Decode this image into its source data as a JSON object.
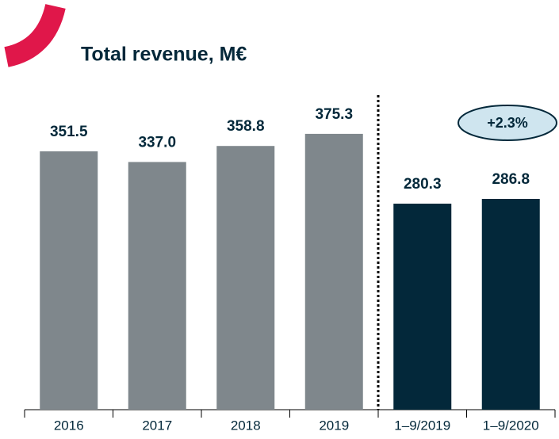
{
  "chart_data": {
    "type": "bar",
    "title": "Total revenue, M€",
    "categories": [
      "2016",
      "2017",
      "2018",
      "2019",
      "1–9/2019",
      "1–9/2020"
    ],
    "values": [
      351.5,
      337.0,
      358.8,
      375.3,
      280.3,
      286.8
    ],
    "value_labels": [
      "351.5",
      "337.0",
      "358.8",
      "375.3",
      "280.3",
      "286.8"
    ],
    "colors": [
      "#7f878c",
      "#7f878c",
      "#7f878c",
      "#7f878c",
      "#03283a",
      "#03283a"
    ],
    "ylim": [
      0,
      400
    ],
    "annotation": "+2.3%"
  }
}
